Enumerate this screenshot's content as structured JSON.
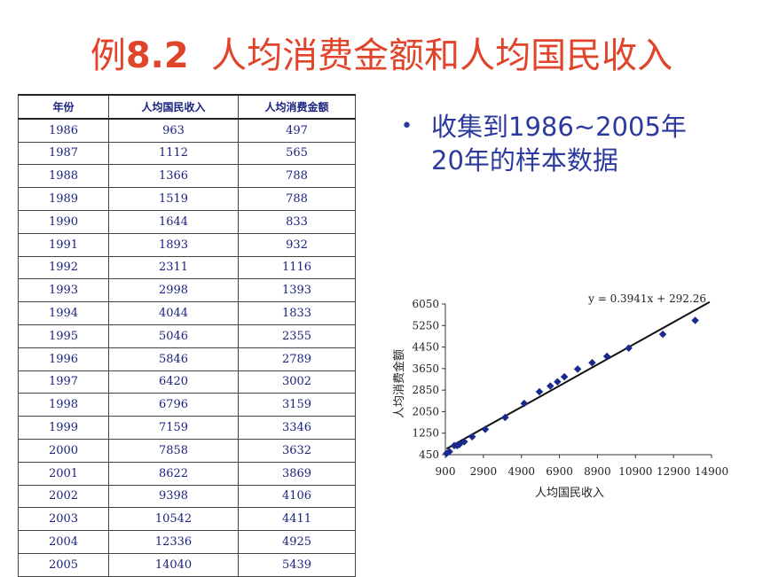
{
  "title": {
    "prefix": "例",
    "number": "8.2",
    "text": "人均消费金额和人均国民收入"
  },
  "table": {
    "headers": [
      "年份",
      "人均国民收入",
      "人均消费金额"
    ],
    "rows": [
      [
        "1986",
        "963",
        "497"
      ],
      [
        "1987",
        "1112",
        "565"
      ],
      [
        "1988",
        "1366",
        "788"
      ],
      [
        "1989",
        "1519",
        "788"
      ],
      [
        "1990",
        "1644",
        "833"
      ],
      [
        "1991",
        "1893",
        "932"
      ],
      [
        "1992",
        "2311",
        "1116"
      ],
      [
        "1993",
        "2998",
        "1393"
      ],
      [
        "1994",
        "4044",
        "1833"
      ],
      [
        "1995",
        "5046",
        "2355"
      ],
      [
        "1996",
        "5846",
        "2789"
      ],
      [
        "1997",
        "6420",
        "3002"
      ],
      [
        "1998",
        "6796",
        "3159"
      ],
      [
        "1999",
        "7159",
        "3346"
      ],
      [
        "2000",
        "7858",
        "3632"
      ],
      [
        "2001",
        "8622",
        "3869"
      ],
      [
        "2002",
        "9398",
        "4106"
      ],
      [
        "2003",
        "10542",
        "4411"
      ],
      [
        "2004",
        "12336",
        "4925"
      ],
      [
        "2005",
        "14040",
        "5439"
      ]
    ]
  },
  "bullet": {
    "marker": "•",
    "line1": "收集到1986~2005年",
    "line2": "20年的样本数据"
  },
  "colors": {
    "title": "#e0452b",
    "bullet": "#2b3a9c",
    "table_text": "#1a237e",
    "points": "#1a2a8c"
  },
  "chart_data": {
    "type": "scatter",
    "xlabel": "人均国民收入",
    "ylabel": "人均消费金额",
    "equation": "y = 0.3941x + 292.26",
    "trendline": {
      "slope": 0.3941,
      "intercept": 292.26
    },
    "xlim": [
      900,
      14900
    ],
    "ylim": [
      450,
      6050
    ],
    "xticks": [
      "900",
      "2900",
      "4900",
      "6900",
      "8900",
      "10900",
      "12900",
      "14900"
    ],
    "yticks": [
      "450",
      "1250",
      "2050",
      "2850",
      "3650",
      "4450",
      "5250",
      "6050"
    ],
    "x": [
      963,
      1112,
      1366,
      1519,
      1644,
      1893,
      2311,
      2998,
      4044,
      5046,
      5846,
      6420,
      6796,
      7159,
      7858,
      8622,
      9398,
      10542,
      12336,
      14040
    ],
    "y": [
      497,
      565,
      788,
      788,
      833,
      932,
      1116,
      1393,
      1833,
      2355,
      2789,
      3002,
      3159,
      3346,
      3632,
      3869,
      4106,
      4411,
      4925,
      5439
    ],
    "grid": false,
    "legend": "none"
  }
}
